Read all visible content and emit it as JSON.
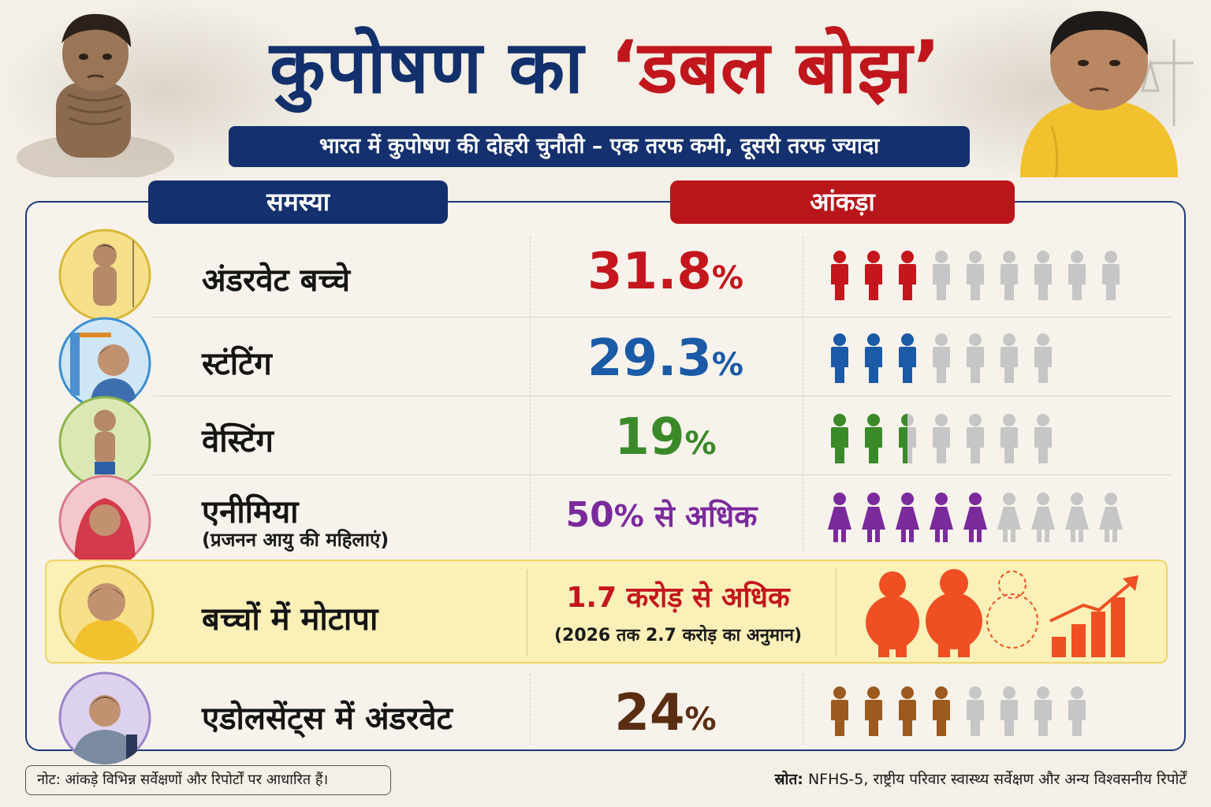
{
  "header": {
    "title_part1": "कुपोषण का",
    "title_part2": "‘डबल बोझ’",
    "subtitle": "भारत में कुपोषण की दोहरी चुनौती – एक तरफ कमी, दूसरी तरफ ज्यादा"
  },
  "columns": {
    "problem": "समस्या",
    "statistic": "आंकड़ा"
  },
  "rows": [
    {
      "label": "अंडरवेट बच्चे",
      "value": "31.8",
      "unit": "%",
      "color": "#c4161c",
      "icons_colored": 3,
      "icons_total": 9,
      "icon_type": "child-figure-icon"
    },
    {
      "label": "स्टंटिंग",
      "value": "29.3",
      "unit": "%",
      "color": "#1a5aa6",
      "icons_colored": 3,
      "icons_total": 7,
      "icon_type": "child-figure-icon"
    },
    {
      "label": "वेस्टिंग",
      "value": "19",
      "unit": "%",
      "color": "#3b8a2a",
      "icons_colored": 2.5,
      "icons_total": 7,
      "icon_type": "child-figure-icon"
    },
    {
      "label": "एनीमिया",
      "sublabel": "(प्रजनन आयु की महिलाएं)",
      "value": "50",
      "unit": "% से अधिक",
      "color": "#7b2a9c",
      "icons_colored": 5,
      "icons_total": 9,
      "icon_type": "woman-figure-icon"
    },
    {
      "label": "बच्चों में मोटापा",
      "value": "1.7 करोड़ से अधिक",
      "note": "(2026 तक 2.7 करोड़ का अनुमान)",
      "color": "#c4161c",
      "icon_color": "#ef4f23",
      "icon_type": "obese-child-icon"
    },
    {
      "label": "एडोलसेंट्स में अंडरवेट",
      "value": "24",
      "unit": "%",
      "color": "#5a2d12",
      "icons_colored": 4,
      "icons_total": 8,
      "icon_type": "teen-figure-icon",
      "icon_color": "#9c5a1e"
    }
  ],
  "footer": {
    "note": "नोट: आंकड़े विभिन्न सर्वेक्षणों और रिपोर्टों पर आधारित हैं।",
    "source_label": "स्रोत:",
    "source_text": " NFHS-5, राष्ट्रीय परिवार स्वास्थ्य सर्वेक्षण और अन्य विश्वसनीय रिपोर्टें"
  },
  "colors": {
    "navy": "#15306e",
    "red": "#b8161b",
    "grey_icon": "#c6c6c6"
  }
}
